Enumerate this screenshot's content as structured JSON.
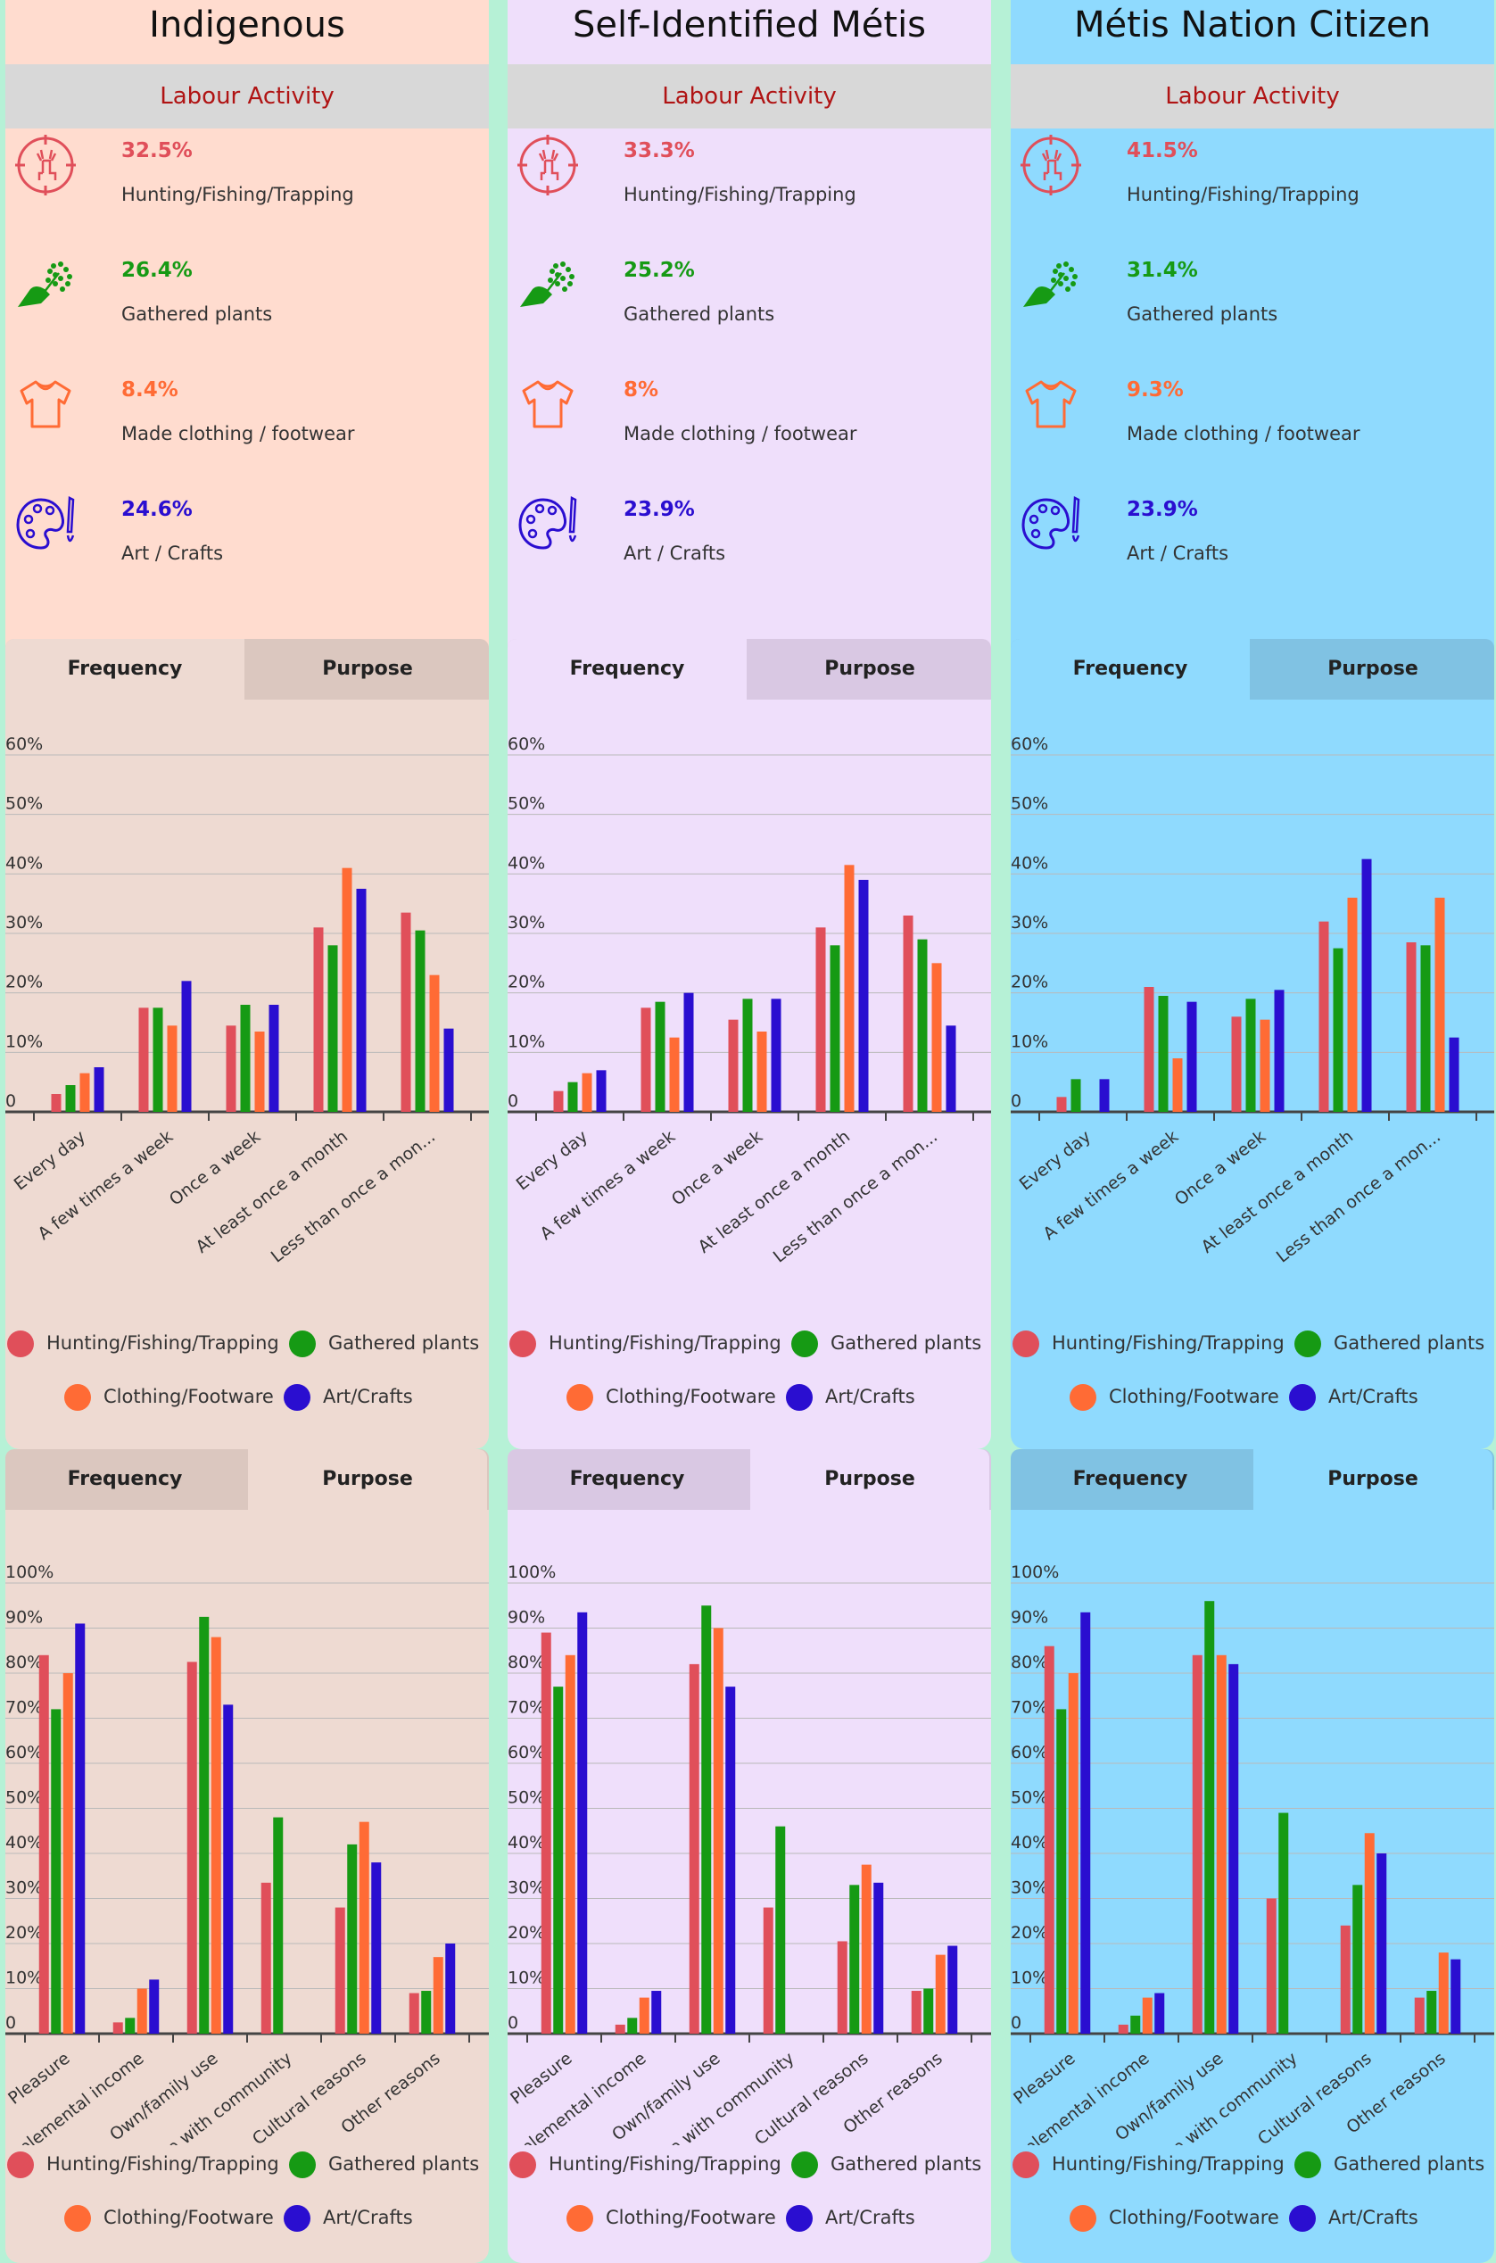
{
  "labour_heading": "Labour Activity",
  "colors": {
    "hunting": "#e04f5a",
    "plants": "#169a14",
    "clothing": "#ff6b35",
    "art": "#2a0ed0"
  },
  "legend": [
    "Hunting/Fishing/Trapping",
    "Gathered plants",
    "Clothing/Footware",
    "Art/Crafts"
  ],
  "tabs": {
    "frequency": "Frequency",
    "purpose": "Purpose"
  },
  "groups": [
    {
      "title": "Indigenous",
      "theme": {
        "top": "#ffdccf",
        "chart": "#eedad2",
        "tabbar": "#dbc7bf"
      },
      "activities": [
        {
          "pct": "32.5%",
          "label": "Hunting/Fishing/Trapping",
          "icon": "deer-target-icon",
          "color": "#e04f5a"
        },
        {
          "pct": "26.4%",
          "label": "Gathered plants",
          "icon": "hand-plant-icon",
          "color": "#169a14"
        },
        {
          "pct": "8.4%",
          "label": "Made clothing / footwear",
          "icon": "shirt-icon",
          "color": "#ff6b35"
        },
        {
          "pct": "24.6%",
          "label": "Art / Crafts",
          "icon": "palette-icon",
          "color": "#2a0ed0"
        }
      ]
    },
    {
      "title": "Self-Identified Métis",
      "theme": {
        "top": "#efdffb",
        "chart": "#efdffb",
        "tabbar": "#d9c8e3"
      },
      "activities": [
        {
          "pct": "33.3%",
          "label": "Hunting/Fishing/Trapping",
          "icon": "deer-target-icon",
          "color": "#e04f5a"
        },
        {
          "pct": "25.2%",
          "label": "Gathered plants",
          "icon": "hand-plant-icon",
          "color": "#169a14"
        },
        {
          "pct": "8%",
          "label": "Made clothing / footwear",
          "icon": "shirt-icon",
          "color": "#ff6b35"
        },
        {
          "pct": "23.9%",
          "label": "Art / Crafts",
          "icon": "palette-icon",
          "color": "#2a0ed0"
        }
      ]
    },
    {
      "title": "Métis Nation Citizen",
      "theme": {
        "top": "#8fdafe",
        "chart": "#8fdafe",
        "tabbar": "#80c2e3"
      },
      "activities": [
        {
          "pct": "41.5%",
          "label": "Hunting/Fishing/Trapping",
          "icon": "deer-target-icon",
          "color": "#e04f5a"
        },
        {
          "pct": "31.4%",
          "label": "Gathered plants",
          "icon": "hand-plant-icon",
          "color": "#169a14"
        },
        {
          "pct": "9.3%",
          "label": "Made clothing / footwear",
          "icon": "shirt-icon",
          "color": "#ff6b35"
        },
        {
          "pct": "23.9%",
          "label": "Art / Crafts",
          "icon": "palette-icon",
          "color": "#2a0ed0"
        }
      ]
    }
  ],
  "chart_data": [
    {
      "type": "bar",
      "group": "Indigenous",
      "view": "Frequency",
      "ylim": [
        0,
        60
      ],
      "yticks": [
        "0",
        "10%",
        "20%",
        "30%",
        "40%",
        "50%",
        "60%"
      ],
      "categories": [
        "Every day",
        "A few times a week",
        "Once a week",
        "At least once a month",
        "Less than once a mon..."
      ],
      "series": [
        {
          "name": "Hunting/Fishing/Trapping",
          "values": [
            3,
            17.5,
            14.5,
            31,
            33.5
          ]
        },
        {
          "name": "Gathered plants",
          "values": [
            4.5,
            17.5,
            18,
            28,
            30.5
          ]
        },
        {
          "name": "Clothing/Footware",
          "values": [
            6.5,
            14.5,
            13.5,
            41,
            23
          ]
        },
        {
          "name": "Art/Crafts",
          "values": [
            7.5,
            22,
            18,
            37.5,
            14
          ]
        }
      ]
    },
    {
      "type": "bar",
      "group": "Self-Identified Métis",
      "view": "Frequency",
      "ylim": [
        0,
        60
      ],
      "yticks": [
        "0",
        "10%",
        "20%",
        "30%",
        "40%",
        "50%",
        "60%"
      ],
      "categories": [
        "Every day",
        "A few times a week",
        "Once a week",
        "At least once a month",
        "Less than once a mon..."
      ],
      "series": [
        {
          "name": "Hunting/Fishing/Trapping",
          "values": [
            3.5,
            17.5,
            15.5,
            31,
            33
          ]
        },
        {
          "name": "Gathered plants",
          "values": [
            5,
            18.5,
            19,
            28,
            29
          ]
        },
        {
          "name": "Clothing/Footware",
          "values": [
            6.5,
            12.5,
            13.5,
            41.5,
            25
          ]
        },
        {
          "name": "Art/Crafts",
          "values": [
            7,
            20,
            19,
            39,
            14.5
          ]
        }
      ]
    },
    {
      "type": "bar",
      "group": "Métis Nation Citizen",
      "view": "Frequency",
      "ylim": [
        0,
        60
      ],
      "yticks": [
        "0",
        "10%",
        "20%",
        "30%",
        "40%",
        "50%",
        "60%"
      ],
      "categories": [
        "Every day",
        "A few times a week",
        "Once a week",
        "At least once a month",
        "Less than once a mon..."
      ],
      "series": [
        {
          "name": "Hunting/Fishing/Trapping",
          "values": [
            2.5,
            21,
            16,
            32,
            28.5
          ]
        },
        {
          "name": "Gathered plants",
          "values": [
            5.5,
            19.5,
            19,
            27.5,
            28
          ]
        },
        {
          "name": "Clothing/Footware",
          "values": [
            0,
            9,
            15.5,
            36,
            36
          ]
        },
        {
          "name": "Art/Crafts",
          "values": [
            5.5,
            18.5,
            20.5,
            42.5,
            12.5
          ]
        }
      ]
    },
    {
      "type": "bar",
      "group": "Indigenous",
      "view": "Purpose",
      "ylim": [
        0,
        100
      ],
      "yticks": [
        "0",
        "10%",
        "20%",
        "30%",
        "40%",
        "50%",
        "60%",
        "70%",
        "80%",
        "90%",
        "100%"
      ],
      "categories": [
        "Pleasure",
        "Supplemental income",
        "Own/family use",
        "Share with community",
        "Cultural reasons",
        "Other reasons"
      ],
      "series": [
        {
          "name": "Hunting/Fishing/Trapping",
          "values": [
            84,
            2.5,
            82.5,
            33.5,
            28,
            9
          ]
        },
        {
          "name": "Gathered plants",
          "values": [
            72,
            3.5,
            92.5,
            48,
            42,
            9.5
          ]
        },
        {
          "name": "Clothing/Footware",
          "values": [
            80,
            10,
            88,
            0,
            47,
            17
          ]
        },
        {
          "name": "Art/Crafts",
          "values": [
            91,
            12,
            73,
            0,
            38,
            20
          ]
        }
      ]
    },
    {
      "type": "bar",
      "group": "Self-Identified Métis",
      "view": "Purpose",
      "ylim": [
        0,
        100
      ],
      "yticks": [
        "0",
        "10%",
        "20%",
        "30%",
        "40%",
        "50%",
        "60%",
        "70%",
        "80%",
        "90%",
        "100%"
      ],
      "categories": [
        "Pleasure",
        "Supplemental income",
        "Own/family use",
        "Share with community",
        "Cultural reasons",
        "Other reasons"
      ],
      "series": [
        {
          "name": "Hunting/Fishing/Trapping",
          "values": [
            89,
            2,
            82,
            28,
            20.5,
            9.5
          ]
        },
        {
          "name": "Gathered plants",
          "values": [
            77,
            3.5,
            95,
            46,
            33,
            10
          ]
        },
        {
          "name": "Clothing/Footware",
          "values": [
            84,
            8,
            90,
            0,
            37.5,
            17.5
          ]
        },
        {
          "name": "Art/Crafts",
          "values": [
            93.5,
            9.5,
            77,
            0,
            33.5,
            19.5
          ]
        }
      ]
    },
    {
      "type": "bar",
      "group": "Métis Nation Citizen",
      "view": "Purpose",
      "ylim": [
        0,
        100
      ],
      "yticks": [
        "0",
        "10%",
        "20%",
        "30%",
        "40%",
        "50%",
        "60%",
        "70%",
        "80%",
        "90%",
        "100%"
      ],
      "categories": [
        "Pleasure",
        "Supplemental income",
        "Own/family use",
        "Share with community",
        "Cultural reasons",
        "Other reasons"
      ],
      "series": [
        {
          "name": "Hunting/Fishing/Trapping",
          "values": [
            86,
            2,
            84,
            30,
            24,
            8
          ]
        },
        {
          "name": "Gathered plants",
          "values": [
            72,
            4,
            96,
            49,
            33,
            9.5
          ]
        },
        {
          "name": "Clothing/Footware",
          "values": [
            80,
            8,
            84,
            0,
            44.5,
            18
          ]
        },
        {
          "name": "Art/Crafts",
          "values": [
            93.5,
            9,
            82,
            0,
            40,
            16.5
          ]
        }
      ]
    }
  ]
}
